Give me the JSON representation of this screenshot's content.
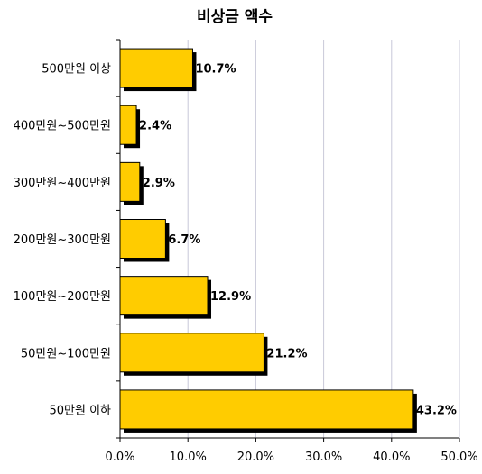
{
  "chart_data": {
    "type": "bar",
    "orientation": "horizontal",
    "title": "비상금 액수",
    "categories": [
      "500만원 이상",
      "400만원~500만원",
      "300만원~400만원",
      "200만원~300만원",
      "100만원~200만원",
      "50만원~100만원",
      "50만원 이하"
    ],
    "values": [
      10.7,
      2.4,
      2.9,
      6.7,
      12.9,
      21.2,
      43.2
    ],
    "data_labels": [
      "10.7%",
      "2.4%",
      "2.9%",
      "6.7%",
      "12.9%",
      "21.2%",
      "43.2%"
    ],
    "xlim": [
      0,
      50
    ],
    "x_ticks": [
      "0.0%",
      "10.0%",
      "20.0%",
      "30.0%",
      "40.0%",
      "50.0%"
    ],
    "grid": "vertical",
    "legend": "none",
    "colors": {
      "bar": "#ffcc00",
      "shadow": "#000000",
      "grid": "#c8c8d8",
      "axis": "#000000"
    }
  }
}
